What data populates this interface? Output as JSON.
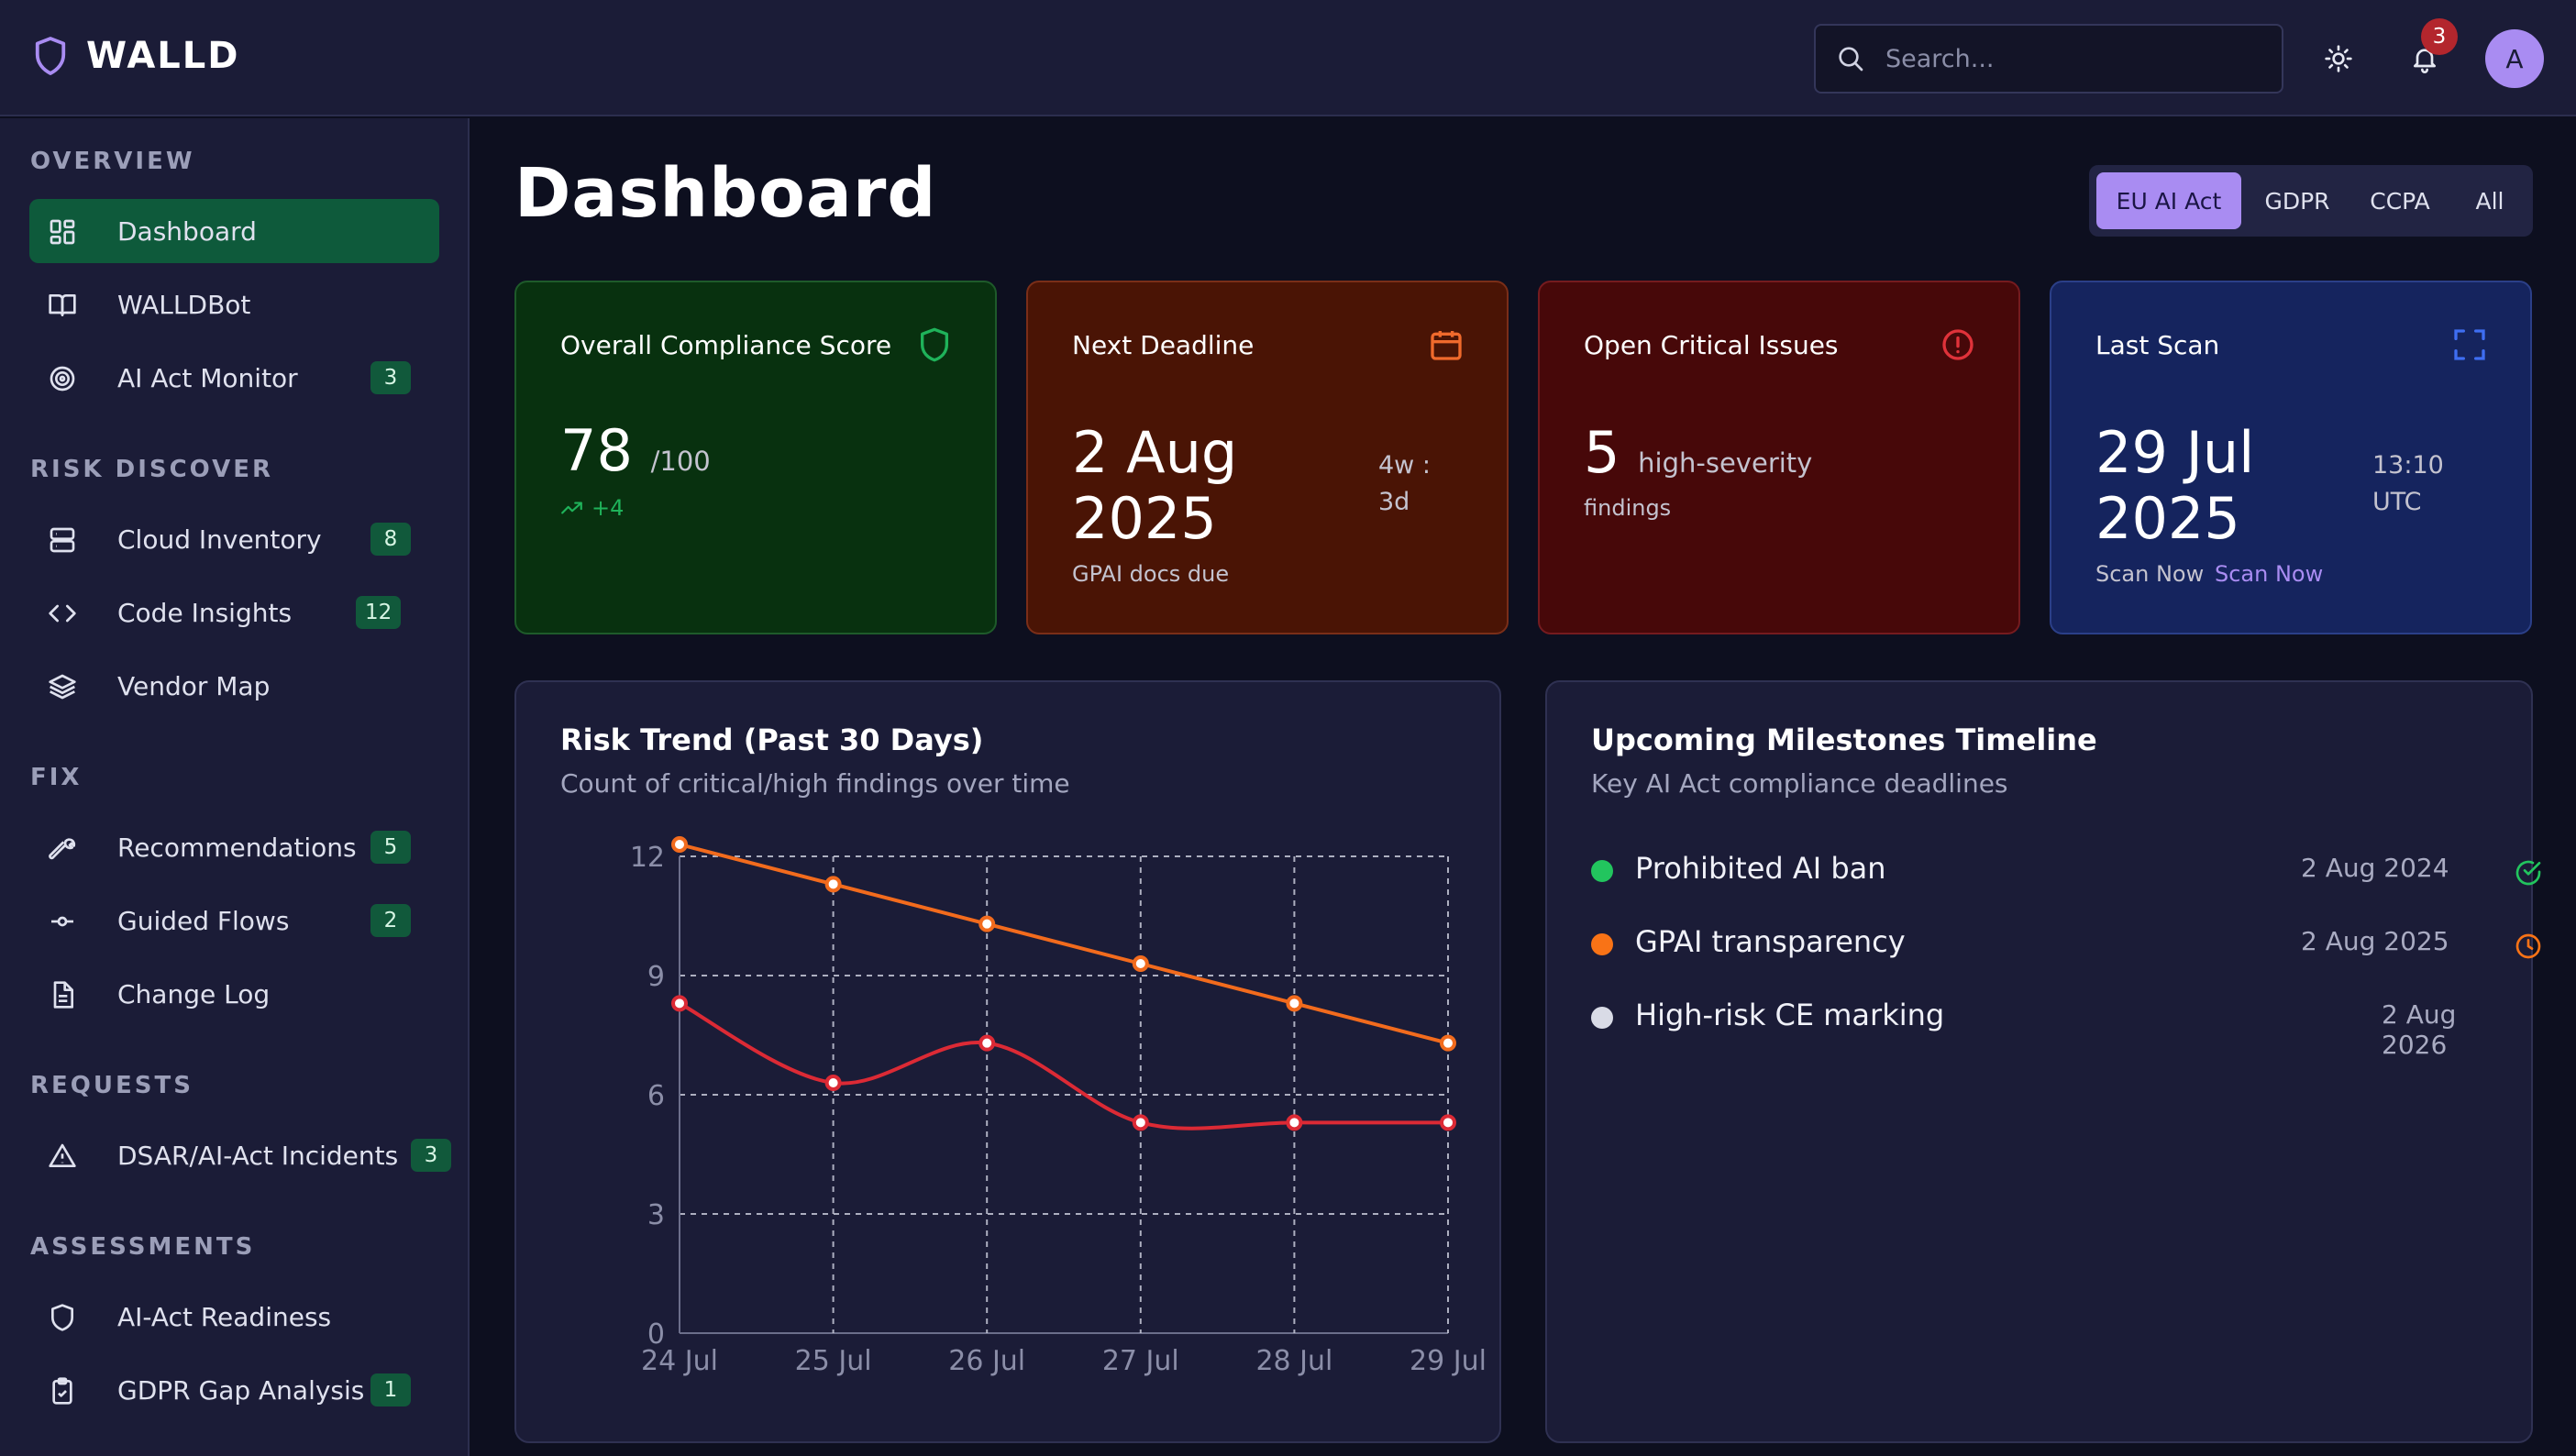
{
  "app": {
    "name": "WALLD"
  },
  "header": {
    "search_placeholder": "Search...",
    "notifications_count": "3",
    "avatar_initial": "A"
  },
  "sidebar": {
    "sections": [
      {
        "title": "OVERVIEW"
      },
      {
        "title": "RISK DISCOVER"
      },
      {
        "title": "FIX"
      },
      {
        "title": "REQUESTS"
      },
      {
        "title": "ASSESSMENTS"
      }
    ],
    "items": [
      {
        "label": "Dashboard",
        "icon": "grid-icon",
        "active": true
      },
      {
        "label": "WALLDBot",
        "icon": "book-icon"
      },
      {
        "label": "AI Act Monitor",
        "icon": "target-icon",
        "badge": "3"
      },
      {
        "label": "Cloud Inventory",
        "icon": "server-icon",
        "badge": "8"
      },
      {
        "label": "Code Insights",
        "icon": "code-icon",
        "badge": "12"
      },
      {
        "label": "Vendor Map",
        "icon": "layers-icon"
      },
      {
        "label": "Recommendations",
        "icon": "wrench-icon",
        "badge": "5"
      },
      {
        "label": "Guided Flows",
        "icon": "commit-icon",
        "badge": "2"
      },
      {
        "label": "Change Log",
        "icon": "file-icon"
      },
      {
        "label": "DSAR/AI-Act Incidents",
        "icon": "warning-icon",
        "badge": "3"
      },
      {
        "label": "AI-Act Readiness",
        "icon": "shield-icon"
      },
      {
        "label": "GDPR Gap Analysis",
        "icon": "clipboard-check-icon",
        "badge": "1"
      }
    ]
  },
  "main": {
    "title": "Dashboard",
    "tabs": [
      {
        "label": "EU AI Act",
        "active": true
      },
      {
        "label": "GDPR"
      },
      {
        "label": "CCPA"
      },
      {
        "label": "All"
      }
    ],
    "cards": {
      "compliance": {
        "title": "Overall Compliance Score",
        "value": "78",
        "suffix": "/100",
        "delta": "+4",
        "icon": "shield-icon",
        "color": "#1fb35a"
      },
      "deadline": {
        "title": "Next Deadline",
        "value_line1": "2 Aug",
        "value_line2": "2025",
        "countdown": "4w : 3d",
        "note": "GPAI docs due",
        "icon": "calendar-icon",
        "color": "#f06a2c"
      },
      "issues": {
        "title": "Open Critical Issues",
        "value": "5",
        "suffix": "high-severity",
        "note": "findings",
        "icon": "alert-circle-icon",
        "color": "#e0323a"
      },
      "scan": {
        "title": "Last Scan",
        "value_line1": "29 Jul",
        "value_line2": "2025",
        "time": "13:10 UTC",
        "note": "Scan Now",
        "link": "Scan Now",
        "icon": "scan-icon",
        "color": "#3f6ef2"
      }
    },
    "risk_panel": {
      "title": "Risk Trend (Past 30 Days)",
      "subtitle": "Count of critical/high findings over time"
    },
    "milestones_panel": {
      "title": "Upcoming Milestones Timeline",
      "subtitle": "Key AI Act compliance deadlines",
      "items": [
        {
          "label": "Prohibited AI ban",
          "date": "2 Aug 2024",
          "dot": "#22c55e",
          "status_icon": "check-circle-icon"
        },
        {
          "label": "GPAI transparency",
          "date": "2 Aug 2025",
          "dot": "#f97316",
          "status_icon": "clock-icon"
        },
        {
          "label": "High-risk CE marking",
          "date": "2 Aug 2026",
          "dot": "#d9dbe6",
          "status_icon": ""
        }
      ]
    }
  },
  "chart_data": {
    "type": "line",
    "categories": [
      "24 Jul",
      "25 Jul",
      "26 Jul",
      "27 Jul",
      "28 Jul",
      "29 Jul"
    ],
    "series": [
      {
        "values": [
          12.3,
          11.3,
          10.3,
          9.3,
          8.3,
          7.3
        ],
        "color": "#f26b1d",
        "smooth": false
      },
      {
        "values": [
          8.3,
          6.3,
          7.3,
          5.3,
          5.3,
          5.3
        ],
        "color": "#dc2a35",
        "smooth": true
      }
    ],
    "ylim": [
      0,
      12
    ],
    "yticks": [
      0,
      3,
      6,
      9,
      12
    ],
    "grid": true,
    "xlabel": "",
    "ylabel": ""
  }
}
